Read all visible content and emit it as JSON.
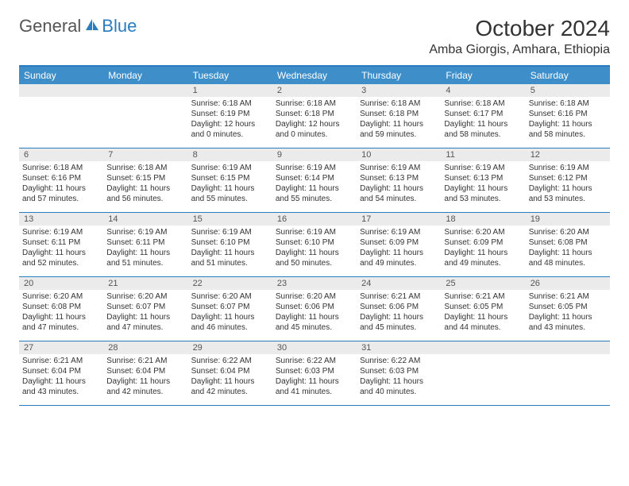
{
  "brand": {
    "text_general": "General",
    "text_blue": "Blue",
    "icon_color": "#2b7bbf"
  },
  "header": {
    "month_title": "October 2024",
    "location": "Amba Giorgis, Amhara, Ethiopia"
  },
  "colors": {
    "header_bar": "#3d8ec9",
    "border": "#2b7bbf",
    "daynum_bg": "#ebebeb",
    "text": "#333333"
  },
  "weekdays": [
    "Sunday",
    "Monday",
    "Tuesday",
    "Wednesday",
    "Thursday",
    "Friday",
    "Saturday"
  ],
  "weeks": [
    [
      {
        "num": "",
        "sunrise": "",
        "sunset": "",
        "daylight": ""
      },
      {
        "num": "",
        "sunrise": "",
        "sunset": "",
        "daylight": ""
      },
      {
        "num": "1",
        "sunrise": "Sunrise: 6:18 AM",
        "sunset": "Sunset: 6:19 PM",
        "daylight": "Daylight: 12 hours and 0 minutes."
      },
      {
        "num": "2",
        "sunrise": "Sunrise: 6:18 AM",
        "sunset": "Sunset: 6:18 PM",
        "daylight": "Daylight: 12 hours and 0 minutes."
      },
      {
        "num": "3",
        "sunrise": "Sunrise: 6:18 AM",
        "sunset": "Sunset: 6:18 PM",
        "daylight": "Daylight: 11 hours and 59 minutes."
      },
      {
        "num": "4",
        "sunrise": "Sunrise: 6:18 AM",
        "sunset": "Sunset: 6:17 PM",
        "daylight": "Daylight: 11 hours and 58 minutes."
      },
      {
        "num": "5",
        "sunrise": "Sunrise: 6:18 AM",
        "sunset": "Sunset: 6:16 PM",
        "daylight": "Daylight: 11 hours and 58 minutes."
      }
    ],
    [
      {
        "num": "6",
        "sunrise": "Sunrise: 6:18 AM",
        "sunset": "Sunset: 6:16 PM",
        "daylight": "Daylight: 11 hours and 57 minutes."
      },
      {
        "num": "7",
        "sunrise": "Sunrise: 6:18 AM",
        "sunset": "Sunset: 6:15 PM",
        "daylight": "Daylight: 11 hours and 56 minutes."
      },
      {
        "num": "8",
        "sunrise": "Sunrise: 6:19 AM",
        "sunset": "Sunset: 6:15 PM",
        "daylight": "Daylight: 11 hours and 55 minutes."
      },
      {
        "num": "9",
        "sunrise": "Sunrise: 6:19 AM",
        "sunset": "Sunset: 6:14 PM",
        "daylight": "Daylight: 11 hours and 55 minutes."
      },
      {
        "num": "10",
        "sunrise": "Sunrise: 6:19 AM",
        "sunset": "Sunset: 6:13 PM",
        "daylight": "Daylight: 11 hours and 54 minutes."
      },
      {
        "num": "11",
        "sunrise": "Sunrise: 6:19 AM",
        "sunset": "Sunset: 6:13 PM",
        "daylight": "Daylight: 11 hours and 53 minutes."
      },
      {
        "num": "12",
        "sunrise": "Sunrise: 6:19 AM",
        "sunset": "Sunset: 6:12 PM",
        "daylight": "Daylight: 11 hours and 53 minutes."
      }
    ],
    [
      {
        "num": "13",
        "sunrise": "Sunrise: 6:19 AM",
        "sunset": "Sunset: 6:11 PM",
        "daylight": "Daylight: 11 hours and 52 minutes."
      },
      {
        "num": "14",
        "sunrise": "Sunrise: 6:19 AM",
        "sunset": "Sunset: 6:11 PM",
        "daylight": "Daylight: 11 hours and 51 minutes."
      },
      {
        "num": "15",
        "sunrise": "Sunrise: 6:19 AM",
        "sunset": "Sunset: 6:10 PM",
        "daylight": "Daylight: 11 hours and 51 minutes."
      },
      {
        "num": "16",
        "sunrise": "Sunrise: 6:19 AM",
        "sunset": "Sunset: 6:10 PM",
        "daylight": "Daylight: 11 hours and 50 minutes."
      },
      {
        "num": "17",
        "sunrise": "Sunrise: 6:19 AM",
        "sunset": "Sunset: 6:09 PM",
        "daylight": "Daylight: 11 hours and 49 minutes."
      },
      {
        "num": "18",
        "sunrise": "Sunrise: 6:20 AM",
        "sunset": "Sunset: 6:09 PM",
        "daylight": "Daylight: 11 hours and 49 minutes."
      },
      {
        "num": "19",
        "sunrise": "Sunrise: 6:20 AM",
        "sunset": "Sunset: 6:08 PM",
        "daylight": "Daylight: 11 hours and 48 minutes."
      }
    ],
    [
      {
        "num": "20",
        "sunrise": "Sunrise: 6:20 AM",
        "sunset": "Sunset: 6:08 PM",
        "daylight": "Daylight: 11 hours and 47 minutes."
      },
      {
        "num": "21",
        "sunrise": "Sunrise: 6:20 AM",
        "sunset": "Sunset: 6:07 PM",
        "daylight": "Daylight: 11 hours and 47 minutes."
      },
      {
        "num": "22",
        "sunrise": "Sunrise: 6:20 AM",
        "sunset": "Sunset: 6:07 PM",
        "daylight": "Daylight: 11 hours and 46 minutes."
      },
      {
        "num": "23",
        "sunrise": "Sunrise: 6:20 AM",
        "sunset": "Sunset: 6:06 PM",
        "daylight": "Daylight: 11 hours and 45 minutes."
      },
      {
        "num": "24",
        "sunrise": "Sunrise: 6:21 AM",
        "sunset": "Sunset: 6:06 PM",
        "daylight": "Daylight: 11 hours and 45 minutes."
      },
      {
        "num": "25",
        "sunrise": "Sunrise: 6:21 AM",
        "sunset": "Sunset: 6:05 PM",
        "daylight": "Daylight: 11 hours and 44 minutes."
      },
      {
        "num": "26",
        "sunrise": "Sunrise: 6:21 AM",
        "sunset": "Sunset: 6:05 PM",
        "daylight": "Daylight: 11 hours and 43 minutes."
      }
    ],
    [
      {
        "num": "27",
        "sunrise": "Sunrise: 6:21 AM",
        "sunset": "Sunset: 6:04 PM",
        "daylight": "Daylight: 11 hours and 43 minutes."
      },
      {
        "num": "28",
        "sunrise": "Sunrise: 6:21 AM",
        "sunset": "Sunset: 6:04 PM",
        "daylight": "Daylight: 11 hours and 42 minutes."
      },
      {
        "num": "29",
        "sunrise": "Sunrise: 6:22 AM",
        "sunset": "Sunset: 6:04 PM",
        "daylight": "Daylight: 11 hours and 42 minutes."
      },
      {
        "num": "30",
        "sunrise": "Sunrise: 6:22 AM",
        "sunset": "Sunset: 6:03 PM",
        "daylight": "Daylight: 11 hours and 41 minutes."
      },
      {
        "num": "31",
        "sunrise": "Sunrise: 6:22 AM",
        "sunset": "Sunset: 6:03 PM",
        "daylight": "Daylight: 11 hours and 40 minutes."
      },
      {
        "num": "",
        "sunrise": "",
        "sunset": "",
        "daylight": ""
      },
      {
        "num": "",
        "sunrise": "",
        "sunset": "",
        "daylight": ""
      }
    ]
  ]
}
